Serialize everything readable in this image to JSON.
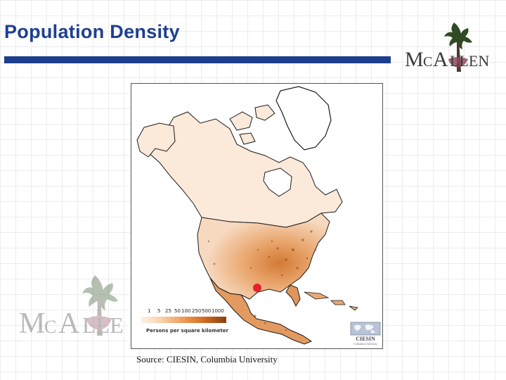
{
  "slide": {
    "title": "Population Density",
    "source": "Source:  CIESIN, Columbia University",
    "accent_color": "#1c3e8c"
  },
  "logo": {
    "text": "MCALLEN",
    "icon": "palm-tree-icon"
  },
  "map": {
    "region": "North America",
    "marker_color": "#e8202a",
    "legend": {
      "ticks": [
        "1",
        "5",
        "25",
        "50",
        "100",
        "250",
        "500",
        "1000"
      ],
      "caption": "Persons per square kilometer"
    },
    "credit": {
      "name": "CIESIN",
      "subtitle": "Columbia University",
      "icon": "globe-map-icon"
    }
  }
}
